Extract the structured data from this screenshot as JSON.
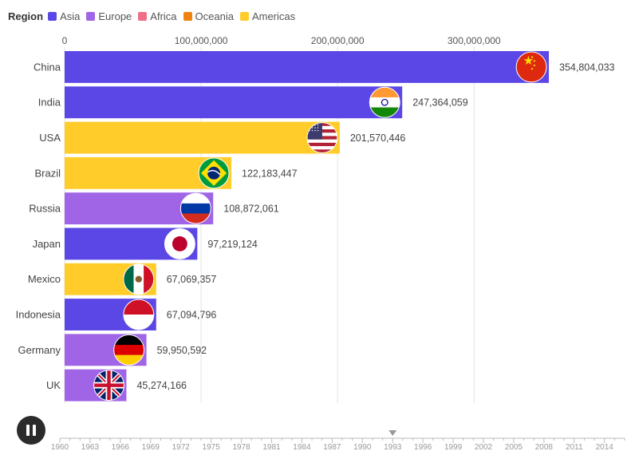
{
  "legend": {
    "title": "Region",
    "items": [
      {
        "label": "Asia",
        "color": "#5b47e6"
      },
      {
        "label": "Europe",
        "color": "#a064e6"
      },
      {
        "label": "Africa",
        "color": "#f06e87"
      },
      {
        "label": "Oceania",
        "color": "#f0820f"
      },
      {
        "label": "Americas",
        "color": "#ffcc29"
      }
    ]
  },
  "chart_data": {
    "type": "bar",
    "orientation": "horizontal",
    "x_axis_position": "top",
    "grid": true,
    "xlim": [
      0,
      354804033
    ],
    "x_ticks": [
      0,
      100000000,
      200000000,
      300000000
    ],
    "x_tick_labels": [
      "0",
      "100,000,000",
      "200,000,000",
      "300,000,000"
    ],
    "categories": [
      "China",
      "India",
      "USA",
      "Brazil",
      "Russia",
      "Japan",
      "Mexico",
      "Indonesia",
      "Germany",
      "UK"
    ],
    "values": [
      354804033,
      247364059,
      201570446,
      122183447,
      108872061,
      97219124,
      67069357,
      67094796,
      59950592,
      45274166
    ],
    "value_labels": [
      "354,804,033",
      "247,364,059",
      "201,570,446",
      "122,183,447",
      "108,872,061",
      "97,219,124",
      "67,069,357",
      "67,094,796",
      "59,950,592",
      "45,274,166"
    ],
    "regions": [
      "Asia",
      "Asia",
      "Americas",
      "Americas",
      "Europe",
      "Asia",
      "Americas",
      "Asia",
      "Europe",
      "Europe"
    ],
    "flag_icons": [
      "china-flag-icon",
      "india-flag-icon",
      "usa-flag-icon",
      "brazil-flag-icon",
      "russia-flag-icon",
      "japan-flag-icon",
      "mexico-flag-icon",
      "indonesia-flag-icon",
      "germany-flag-icon",
      "uk-flag-icon"
    ],
    "title": "",
    "xlabel": "",
    "ylabel": ""
  },
  "timeline": {
    "start_year": 1960,
    "end_year": 2016,
    "current_year": 1993,
    "tick_labels": [
      "1960",
      "1963",
      "1966",
      "1969",
      "1972",
      "1975",
      "1978",
      "1981",
      "1984",
      "1987",
      "1990",
      "1993",
      "1996",
      "1999",
      "2002",
      "2005",
      "2008",
      "2011",
      "2014"
    ]
  },
  "controls": {
    "play_state": "playing",
    "button_icon": "pause-icon"
  }
}
